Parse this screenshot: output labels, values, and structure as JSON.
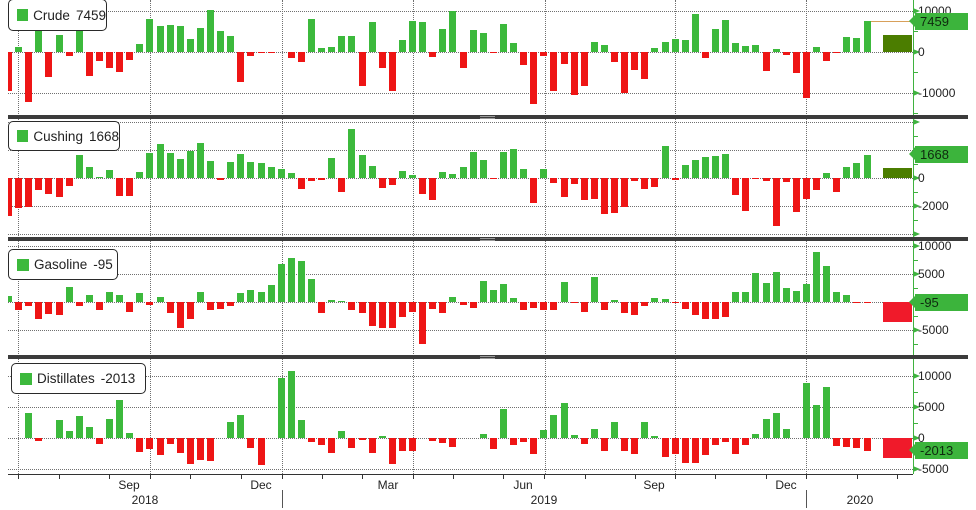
{
  "panels": [
    {
      "legend_label": "Crude",
      "legend_value": "7459",
      "tag": "7459"
    },
    {
      "legend_label": "Cushing",
      "legend_value": "1668",
      "tag": "1668"
    },
    {
      "legend_label": "Gasoline",
      "legend_value": "-95",
      "tag": "-95"
    },
    {
      "legend_label": "Distillates",
      "legend_value": "-2013",
      "tag": "-2013"
    }
  ],
  "xaxis": {
    "months": [
      "Sep",
      "Dec",
      "Mar",
      "Jun",
      "Sep",
      "Dec"
    ],
    "years": [
      "2018",
      "2019",
      "2020"
    ]
  },
  "colors": {
    "positive": "#3cb93c",
    "negative": "#ee1515",
    "summary_positive": "#4b7d00",
    "summary_negative": "#f01a2a",
    "axis": "#3fb23f",
    "tag": "#3cb43c",
    "latest_line": "#d8a05a",
    "separator": "#3b3b3b"
  },
  "chart_data": {
    "type": "bar",
    "title": "",
    "xlabel": "",
    "ylabel": "",
    "frequency": "weekly",
    "x_range": [
      "Jul 2018",
      "Jan 2020"
    ],
    "month_tick_labels": [
      "Sep",
      "Dec",
      "Mar",
      "Jun",
      "Sep",
      "Dec"
    ],
    "year_tick_labels": [
      "2018",
      "2019",
      "2020"
    ],
    "grid": true,
    "legend_position": "top-left of each panel",
    "axis_side": "right",
    "series": [
      {
        "name": "Crude",
        "latest": 7459,
        "ylim": [
          -15370,
          12680
        ],
        "yticks": [
          {
            "v": 10000,
            "label": "10000"
          },
          {
            "v": 0,
            "label": "0"
          },
          {
            "v": -10000,
            "label": "-10000"
          }
        ],
        "minor_ticks": [
          5000,
          -5000,
          -15000
        ],
        "summary_bar": 4150,
        "latest_line": true,
        "values": [
          -9600,
          1200,
          -12300,
          6000,
          -6000,
          4100,
          -1100,
          5500,
          -5800,
          -2300,
          -4000,
          -5000,
          -1900,
          2000,
          8100,
          6300,
          6700,
          6400,
          3200,
          5900,
          10300,
          5000,
          3800,
          -7200,
          -1100,
          -300,
          -100,
          0,
          -1500,
          -2500,
          8100,
          1000,
          1300,
          3800,
          3800,
          -8400,
          7300,
          -3800,
          -9500,
          3000,
          7500,
          7300,
          -1200,
          5500,
          10000,
          -3800,
          5400,
          4700,
          -200,
          6900,
          2300,
          -3100,
          -12600,
          -900,
          -9400,
          -3000,
          -10600,
          -8400,
          2500,
          1800,
          -2500,
          -9900,
          -4500,
          -6700,
          1000,
          2500,
          3200,
          3000,
          9300,
          -1500,
          5700,
          7900,
          2300,
          1500,
          1800,
          -4700,
          700,
          -800,
          -5200,
          -11300,
          1300,
          -2300,
          -300,
          3700,
          3500,
          7459
        ]
      },
      {
        "name": "Cushing",
        "latest": 1668,
        "ylim": [
          -4210,
          4210
        ],
        "yticks": [
          {
            "v": 4000,
            "label": ""
          },
          {
            "v": 2000,
            "label": ""
          },
          {
            "v": 0,
            "label": "0"
          },
          {
            "v": -2000,
            "label": "-2000"
          },
          {
            "v": -4000,
            "label": ""
          }
        ],
        "minor_ticks": [
          3000,
          1000,
          -1000,
          -3000
        ],
        "summary_bar": 720,
        "latest_line": false,
        "values": [
          -2720,
          -2170,
          -2070,
          -840,
          -1130,
          -1350,
          -550,
          1660,
          800,
          50,
          580,
          -1280,
          -1280,
          430,
          1760,
          2410,
          1810,
          1370,
          1900,
          2480,
          1180,
          -120,
          1160,
          1730,
          1160,
          1080,
          800,
          670,
          360,
          -800,
          -190,
          -150,
          1450,
          -990,
          3470,
          1660,
          870,
          -700,
          -480,
          510,
          190,
          -1130,
          -1570,
          430,
          290,
          800,
          1830,
          1300,
          -50,
          1830,
          2100,
          650,
          -1780,
          670,
          -360,
          -1370,
          -430,
          -1570,
          -1490,
          -2580,
          -2510,
          -2050,
          -190,
          -800,
          -630,
          2310,
          -170,
          940,
          1300,
          1520,
          1590,
          1730,
          -1200,
          -2360,
          -100,
          -240,
          -3450,
          -270,
          -2430,
          -1490,
          -840,
          360,
          -990,
          800,
          1080,
          1668
        ]
      },
      {
        "name": "Gasoline",
        "latest": -95,
        "ylim": [
          -9460,
          10890
        ],
        "yticks": [
          {
            "v": 10000,
            "label": "10000"
          },
          {
            "v": 5000,
            "label": "5000"
          },
          {
            "v": 0,
            "label": ""
          },
          {
            "v": -5000,
            "label": "-5000"
          }
        ],
        "minor_ticks": [
          7500,
          2500,
          -2500,
          -7500
        ],
        "summary_bar": -3500,
        "latest_line": false,
        "values": [
          1000,
          -1350,
          -650,
          -3100,
          -2200,
          -2400,
          2750,
          -650,
          1250,
          -1500,
          1750,
          1250,
          -1700,
          1600,
          -500,
          900,
          -1900,
          -4700,
          -3100,
          1750,
          -1350,
          -1200,
          -650,
          1600,
          2100,
          1750,
          3000,
          6700,
          7900,
          7400,
          4050,
          -2050,
          350,
          250,
          -1350,
          -1900,
          -4200,
          -4600,
          -4600,
          -2750,
          -1700,
          -7500,
          -1200,
          -2050,
          900,
          -500,
          -1000,
          3700,
          2100,
          3200,
          700,
          -1500,
          -1000,
          -1500,
          -1350,
          3500,
          -100,
          -1700,
          4400,
          -1350,
          350,
          -2050,
          -2250,
          -650,
          700,
          500,
          -100,
          -1200,
          -2400,
          -2950,
          -2950,
          -2750,
          1750,
          1750,
          5100,
          3350,
          5300,
          2450,
          1950,
          3200,
          9000,
          6500,
          1750,
          1250,
          -50,
          -95
        ]
      },
      {
        "name": "Distillates",
        "latest": -2013,
        "ylim": [
          -5800,
          12740
        ],
        "yticks": [
          {
            "v": 10000,
            "label": "10000"
          },
          {
            "v": 5000,
            "label": "5000"
          },
          {
            "v": 0,
            "label": "0"
          },
          {
            "v": -5000,
            "label": "-5000"
          }
        ],
        "minor_ticks": [
          7500,
          2500,
          -2500
        ],
        "summary_bar": -3200,
        "latest_line": false,
        "values": [
          0,
          0,
          4000,
          -500,
          0,
          2900,
          1100,
          3550,
          1750,
          -1000,
          3050,
          6200,
          750,
          -2300,
          -1800,
          -2800,
          -1000,
          -2450,
          -4250,
          -3600,
          -3750,
          0,
          2550,
          3700,
          -1650,
          -4400,
          0,
          9600,
          10750,
          2900,
          -650,
          -1150,
          -2450,
          1100,
          -1650,
          -300,
          -2450,
          300,
          -4250,
          -2150,
          -2150,
          0,
          -500,
          -800,
          -1500,
          0,
          0,
          600,
          -1800,
          4600,
          -1150,
          -650,
          -2600,
          1250,
          3700,
          5700,
          450,
          -1000,
          1400,
          -2150,
          2550,
          -2150,
          -2600,
          2550,
          250,
          -3100,
          -2600,
          -4100,
          -3950,
          -2800,
          -1150,
          -650,
          -2600,
          -1150,
          600,
          3050,
          4050,
          1400,
          0,
          8950,
          5350,
          8300,
          -1300,
          -1500,
          -1650,
          -2013
        ]
      }
    ]
  }
}
